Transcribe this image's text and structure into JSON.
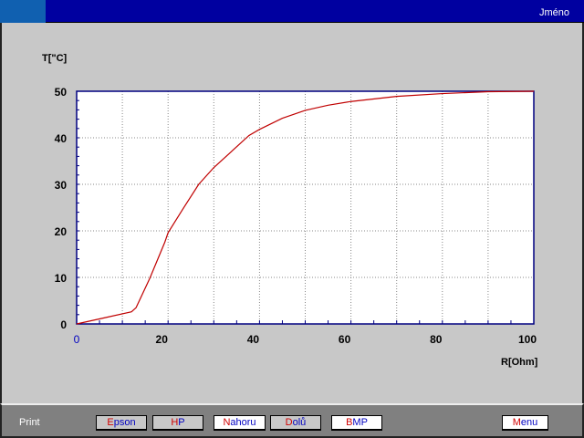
{
  "header": {
    "user_label": "Jméno"
  },
  "footer": {
    "print_label": "Print",
    "buttons": [
      {
        "first": "E",
        "rest": "pson",
        "style": "gray"
      },
      {
        "first": "H",
        "rest": "P",
        "style": "gray"
      },
      {
        "first": "N",
        "rest": "ahoru",
        "style": "white"
      },
      {
        "first": "D",
        "rest": "olů",
        "style": "gray"
      },
      {
        "first": "B",
        "rest": "MP",
        "style": "white"
      },
      {
        "first": "M",
        "rest": "enu",
        "style": "white"
      }
    ]
  },
  "colors": {
    "title_bar": "#0000a0",
    "curve": "#c00000",
    "axis": "#000080",
    "first_letter": "#d00000",
    "label_text": "#0000c0"
  },
  "chart_data": {
    "type": "line",
    "xlabel": "R[Ohm]",
    "ylabel": "T[\"C]",
    "xlim": [
      0,
      100
    ],
    "ylim": [
      0,
      50
    ],
    "xticks": [
      "0",
      "20",
      "40",
      "60",
      "80",
      "100"
    ],
    "yticks": [
      "0",
      "10",
      "20",
      "30",
      "40",
      "50"
    ],
    "grid": true,
    "series": [
      {
        "x": [
          0,
          6,
          12,
          13,
          16,
          19.3,
          20,
          23.3,
          26.7,
          30,
          33.7,
          37.7,
          40,
          45,
          50,
          55,
          60,
          70,
          80,
          90,
          100
        ],
        "y": [
          0,
          1.3,
          2.6,
          3.5,
          9.8,
          17.6,
          19.6,
          24.8,
          30,
          33.6,
          36.9,
          40.5,
          41.8,
          44.2,
          45.9,
          47,
          47.8,
          48.9,
          49.5,
          49.9,
          50
        ]
      }
    ]
  }
}
